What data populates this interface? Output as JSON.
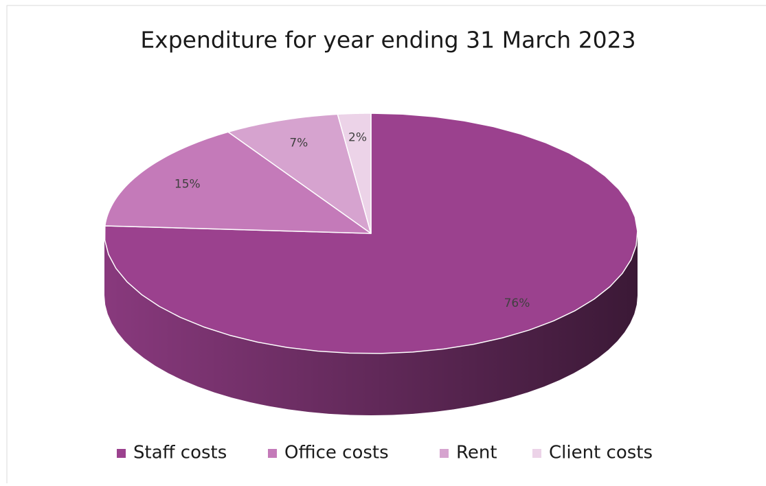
{
  "chart_data": {
    "type": "pie",
    "title": "Expenditure for year ending 31 March 2023",
    "categories": [
      "Staff costs",
      "Office costs",
      "Rent",
      "Client costs"
    ],
    "values": [
      76,
      15,
      7,
      2
    ],
    "value_labels": [
      "76%",
      "15%",
      "7%",
      "2%"
    ],
    "colors": [
      "#9b418e",
      "#c47ab9",
      "#d6a3cf",
      "#ecd3e8"
    ],
    "legend": "bottom"
  }
}
